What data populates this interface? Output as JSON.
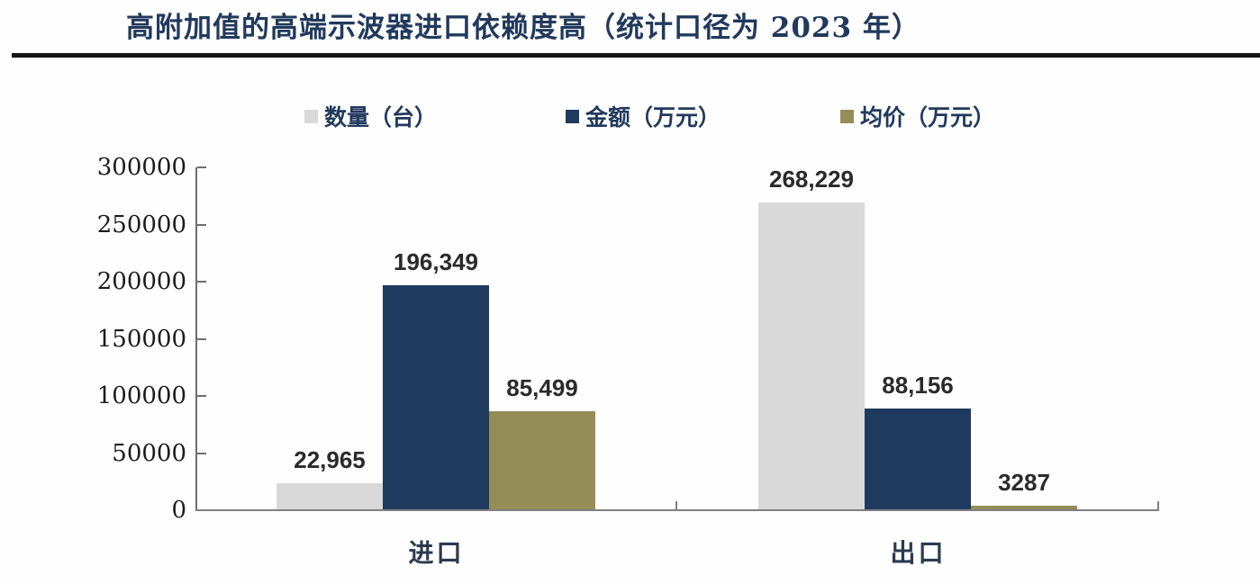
{
  "title": {
    "text": "高附加值的高端示波器进口依赖度高（统计口径为 2023 年）"
  },
  "legend": [
    {
      "label": "数量（台）",
      "color": "#d9d9d9"
    },
    {
      "label": "金额（万元）",
      "color": "#1f3a5f"
    },
    {
      "label": "均价（万元）",
      "color": "#948d58"
    }
  ],
  "chart_data": {
    "type": "bar",
    "categories": [
      "进口",
      "出口"
    ],
    "series": [
      {
        "name": "数量（台）",
        "color": "#d9d9d9",
        "values": [
          22965,
          268229
        ],
        "labels": [
          "22,965",
          "268,229"
        ]
      },
      {
        "name": "金额（万元）",
        "color": "#1f3a5f",
        "values": [
          196349,
          88156
        ],
        "labels": [
          "196,349",
          "88,156"
        ]
      },
      {
        "name": "均价（万元）",
        "color": "#948d58",
        "values": [
          85499,
          3287
        ],
        "labels": [
          "85,499",
          "3287"
        ]
      }
    ],
    "ylabel": "",
    "xlabel": "",
    "ylim": [
      0,
      300000
    ],
    "ytick_step": 50000,
    "yticks": [
      "300000",
      "250000",
      "200000",
      "150000",
      "100000",
      "50000",
      "0"
    ],
    "grid": false,
    "legend_position": "top"
  }
}
